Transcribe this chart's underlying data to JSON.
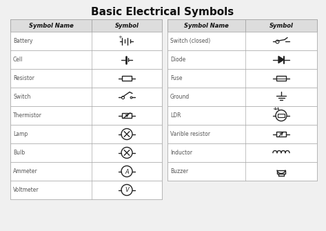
{
  "title": "Basic Electrical Symbols",
  "title_fontsize": 11,
  "title_fontweight": "bold",
  "background_color": "#f0f0f0",
  "left_table": {
    "headers": [
      "Symbol Name",
      "Symbol"
    ],
    "rows": [
      [
        "Battery",
        "battery"
      ],
      [
        "Cell",
        "cell"
      ],
      [
        "Resistor",
        "resistor"
      ],
      [
        "Switch",
        "switch"
      ],
      [
        "Thermistor",
        "thermistor"
      ],
      [
        "Lamp",
        "lamp"
      ],
      [
        "Bulb",
        "bulb"
      ],
      [
        "Ammeter",
        "ammeter"
      ],
      [
        "Voltmeter",
        "voltmeter"
      ]
    ]
  },
  "right_table": {
    "headers": [
      "Symbol Name",
      "Symbol"
    ],
    "rows": [
      [
        "Switch (closed)",
        "switch_closed"
      ],
      [
        "Diode",
        "diode"
      ],
      [
        "Fuse",
        "fuse"
      ],
      [
        "Ground",
        "ground"
      ],
      [
        "LDR",
        "ldr"
      ],
      [
        "Varible resistor",
        "variable_resistor"
      ],
      [
        "Inductor",
        "inductor"
      ],
      [
        "Buzzer",
        "buzzer"
      ]
    ]
  },
  "line_color": "#222222",
  "text_color": "#555555",
  "header_text_color": "#111111",
  "grid_color": "#aaaaaa",
  "header_bg": "#dddddd",
  "row_bg": "#ffffff"
}
